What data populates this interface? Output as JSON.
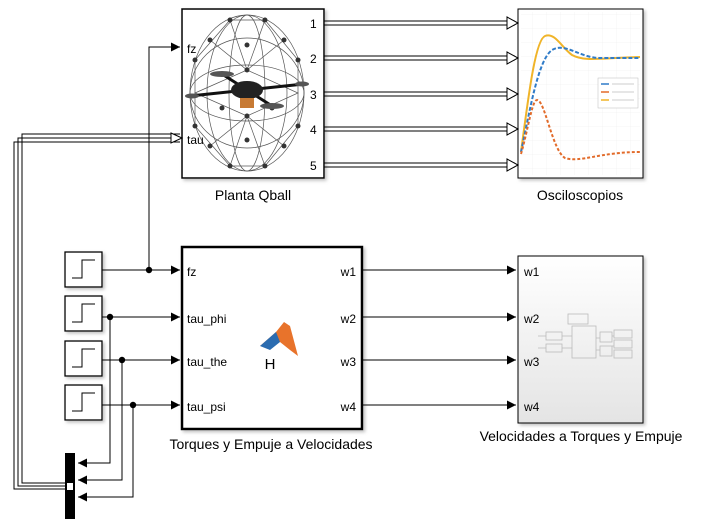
{
  "blocks": {
    "qball": {
      "label": "Planta Qball",
      "inputs": [
        "fz",
        "tau"
      ],
      "outputs": [
        "1",
        "2",
        "3",
        "4",
        "5"
      ]
    },
    "scopes": {
      "label": "Osciloscopios"
    },
    "fcn": {
      "label": "Torques y Empuje a Velocidades",
      "icon_text": "H",
      "inputs": [
        "fz",
        "tau_phi",
        "tau_the",
        "tau_psi"
      ],
      "outputs": [
        "w1",
        "w2",
        "w3",
        "w4"
      ]
    },
    "subsys": {
      "label": "Velocidades a Torques y Empuje",
      "inputs": [
        "w1",
        "w2",
        "w3",
        "w4"
      ]
    }
  },
  "step_sources": 4,
  "colors": {
    "scope_blue": "#2f7bc8",
    "scope_orange": "#e26b2a",
    "scope_yellow": "#f0b429",
    "matlab_orange": "#e8732b",
    "matlab_blue": "#2b6cb0"
  }
}
